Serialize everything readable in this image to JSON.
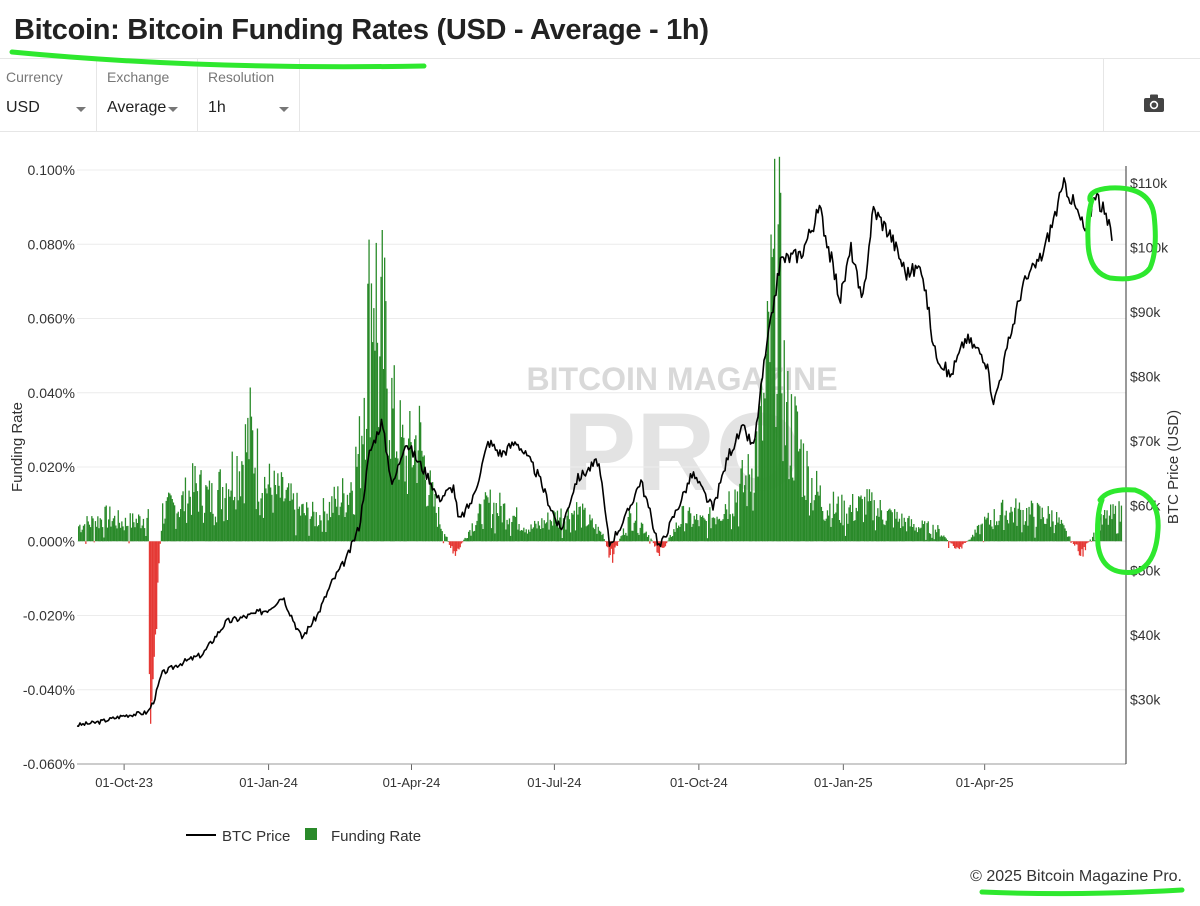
{
  "page": {
    "title": "Bitcoin: Bitcoin Funding Rates (USD - Average - 1h)",
    "copyright": "© 2025 Bitcoin Magazine Pro."
  },
  "controls": [
    {
      "label": "Currency",
      "value": "USD"
    },
    {
      "label": "Exchange",
      "value": "Average"
    },
    {
      "label": "Resolution",
      "value": "1h"
    }
  ],
  "toolbar": {
    "camera_icon": "camera-icon"
  },
  "chart_data": {
    "type": "bar",
    "watermark": {
      "line1": "BITCOIN MAGAZINE",
      "line2": "PRO"
    },
    "x_ticks": [
      "01-Oct-23",
      "01-Jan-24",
      "01-Apr-24",
      "01-Jul-24",
      "01-Oct-24",
      "01-Jan-25",
      "01-Apr-25"
    ],
    "x_range": [
      "2023-09-01",
      "2025-06-30"
    ],
    "y_left": {
      "label": "Funding Rate",
      "ticks": [
        "0.100%",
        "0.080%",
        "0.060%",
        "0.040%",
        "0.020%",
        "0.000%",
        "-0.020%",
        "-0.040%",
        "-0.060%"
      ],
      "range": [
        -0.06,
        0.1
      ]
    },
    "y_right": {
      "label": "BTC Price (USD)",
      "ticks": [
        "$110k",
        "$100k",
        "$90k",
        "$80k",
        "$70k",
        "$60k",
        "$50k",
        "$40k",
        "$30k"
      ],
      "range": [
        20000,
        112000
      ]
    },
    "legend": [
      {
        "name": "BTC Price",
        "color": "#000000",
        "kind": "line"
      },
      {
        "name": "Funding Rate",
        "color": "#2a8a2a",
        "kind": "square"
      }
    ],
    "colors": {
      "positive": "#2a8a2a",
      "negative": "#e53935",
      "price": "#000000"
    },
    "series": [
      {
        "name": "BTC Price",
        "x": [
          "2023-09-01",
          "2023-09-15",
          "2023-10-01",
          "2023-10-10",
          "2023-10-16",
          "2023-10-20",
          "2023-10-25",
          "2023-11-05",
          "2023-11-20",
          "2023-12-05",
          "2023-12-20",
          "2024-01-01",
          "2024-01-10",
          "2024-01-22",
          "2024-02-01",
          "2024-02-10",
          "2024-02-20",
          "2024-02-28",
          "2024-03-05",
          "2024-03-13",
          "2024-03-20",
          "2024-03-28",
          "2024-04-05",
          "2024-04-13",
          "2024-04-18",
          "2024-04-28",
          "2024-05-01",
          "2024-05-10",
          "2024-05-20",
          "2024-05-28",
          "2024-06-07",
          "2024-06-20",
          "2024-07-05",
          "2024-07-15",
          "2024-07-29",
          "2024-08-05",
          "2024-08-15",
          "2024-08-25",
          "2024-09-06",
          "2024-09-18",
          "2024-09-27",
          "2024-10-10",
          "2024-10-20",
          "2024-10-29",
          "2024-11-05",
          "2024-11-11",
          "2024-11-22",
          "2024-12-05",
          "2024-12-17",
          "2024-12-30",
          "2025-01-06",
          "2025-01-13",
          "2025-01-20",
          "2025-01-31",
          "2025-02-10",
          "2025-02-20",
          "2025-02-28",
          "2025-03-10",
          "2025-03-20",
          "2025-04-01",
          "2025-04-07",
          "2025-04-15",
          "2025-04-25",
          "2025-05-08",
          "2025-05-22",
          "2025-06-05",
          "2025-06-10",
          "2025-06-18",
          "2025-06-22",
          "2025-06-30"
        ],
        "values": [
          26000,
          26500,
          27500,
          27800,
          28000,
          29800,
          34000,
          35500,
          37000,
          42000,
          43000,
          44000,
          46000,
          39500,
          43000,
          48000,
          52000,
          57000,
          68000,
          73000,
          63000,
          70000,
          67000,
          64000,
          61000,
          63000,
          57500,
          61000,
          70000,
          68000,
          70000,
          65000,
          56000,
          64000,
          67000,
          54000,
          58000,
          64000,
          53500,
          60000,
          65000,
          59500,
          68000,
          72000,
          69000,
          81000,
          98000,
          99000,
          106000,
          92000,
          100000,
          91000,
          106000,
          102000,
          96000,
          97000,
          84000,
          80000,
          86000,
          83000,
          76000,
          84000,
          94000,
          99000,
          110000,
          102000,
          109000,
          104000,
          101000,
          108000
        ]
      },
      {
        "name": "Funding Rate",
        "unit": "%",
        "x": [
          "2023-09-01",
          "2023-09-20",
          "2023-10-01",
          "2023-10-10",
          "2023-10-16",
          "2023-10-17",
          "2023-10-25",
          "2023-11-05",
          "2023-11-15",
          "2023-11-25",
          "2023-12-05",
          "2023-12-15",
          "2023-12-20",
          "2023-12-28",
          "2024-01-05",
          "2024-01-10",
          "2024-01-20",
          "2024-02-01",
          "2024-02-10",
          "2024-02-20",
          "2024-02-28",
          "2024-03-02",
          "2024-03-05",
          "2024-03-08",
          "2024-03-11",
          "2024-03-13",
          "2024-03-20",
          "2024-03-28",
          "2024-04-05",
          "2024-04-13",
          "2024-04-20",
          "2024-04-28",
          "2024-05-10",
          "2024-05-20",
          "2024-06-01",
          "2024-06-15",
          "2024-07-01",
          "2024-07-15",
          "2024-08-01",
          "2024-08-05",
          "2024-08-20",
          "2024-09-06",
          "2024-09-20",
          "2024-10-05",
          "2024-10-20",
          "2024-11-01",
          "2024-11-08",
          "2024-11-12",
          "2024-11-15",
          "2024-11-20",
          "2024-11-25",
          "2024-12-01",
          "2024-12-05",
          "2024-12-10",
          "2024-12-20",
          "2025-01-01",
          "2025-01-15",
          "2025-02-01",
          "2025-02-15",
          "2025-03-01",
          "2025-03-15",
          "2025-04-01",
          "2025-04-15",
          "2025-05-01",
          "2025-05-15",
          "2025-06-01",
          "2025-06-15",
          "2025-06-30"
        ],
        "values": [
          0.005,
          0.008,
          0.006,
          0.007,
          0.009,
          -0.053,
          0.01,
          0.012,
          0.018,
          0.014,
          0.02,
          0.028,
          0.035,
          0.02,
          0.016,
          0.015,
          0.01,
          0.008,
          0.012,
          0.016,
          0.03,
          0.06,
          0.075,
          0.098,
          0.05,
          0.07,
          0.04,
          0.026,
          0.035,
          0.015,
          0.005,
          -0.005,
          0.006,
          0.012,
          0.01,
          0.004,
          0.008,
          0.01,
          0.002,
          -0.006,
          0.01,
          -0.004,
          0.008,
          0.006,
          0.014,
          0.02,
          0.035,
          0.045,
          0.07,
          0.094,
          0.04,
          0.035,
          0.028,
          0.02,
          0.012,
          0.01,
          0.012,
          0.008,
          0.005,
          0.004,
          -0.003,
          0.006,
          0.01,
          0.009,
          0.008,
          -0.004,
          0.007,
          0.01
        ]
      }
    ]
  }
}
